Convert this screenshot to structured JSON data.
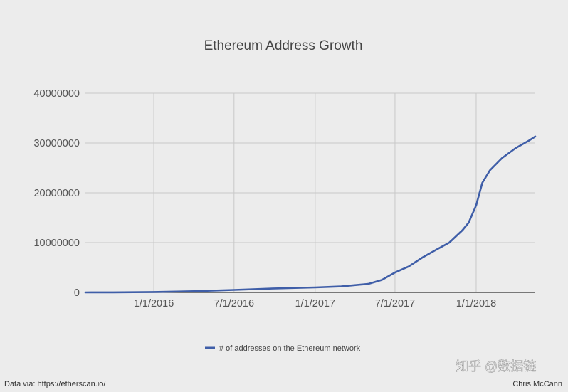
{
  "chart_data": {
    "type": "line",
    "title": "Ethereum Address Growth",
    "xlabel": "",
    "ylabel": "",
    "x_ticks": [
      "1/1/2016",
      "7/1/2016",
      "1/1/2017",
      "7/1/2017",
      "1/1/2018"
    ],
    "y_ticks": [
      "0",
      "10000000",
      "20000000",
      "30000000",
      "40000000"
    ],
    "ylim": [
      0,
      40000000
    ],
    "xlim": [
      "2015-07-30",
      "2018-05-15"
    ],
    "grid": true,
    "legend_position": "bottom",
    "series": [
      {
        "name": "# of addresses on the Ethereum network",
        "color": "#3f5ea8",
        "x": [
          "2015-07-30",
          "2015-10-01",
          "2016-01-01",
          "2016-04-01",
          "2016-07-01",
          "2016-10-01",
          "2017-01-01",
          "2017-03-01",
          "2017-05-01",
          "2017-06-01",
          "2017-07-01",
          "2017-08-01",
          "2017-09-01",
          "2017-10-01",
          "2017-11-01",
          "2017-12-01",
          "2017-12-15",
          "2018-01-01",
          "2018-01-15",
          "2018-02-01",
          "2018-03-01",
          "2018-04-01",
          "2018-05-01",
          "2018-05-15"
        ],
        "y": [
          0,
          20000,
          80000,
          250000,
          500000,
          800000,
          1000000,
          1200000,
          1700000,
          2500000,
          4000000,
          5200000,
          7000000,
          8500000,
          10000000,
          12500000,
          14000000,
          17500000,
          22000000,
          24500000,
          27000000,
          29000000,
          30500000,
          31300000
        ]
      }
    ]
  },
  "footer": {
    "source": "Data via: https://etherscan.io/",
    "author": "Chris McCann",
    "watermark": "知乎 @数据链"
  }
}
